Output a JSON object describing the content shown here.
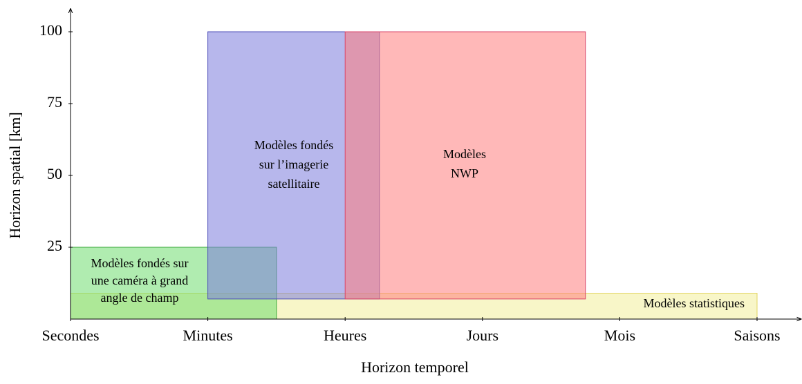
{
  "chart_data": {
    "type": "range",
    "xlabel": "Horizon temporel",
    "ylabel": "Horizon spatial [km]",
    "xlim": [
      0,
      5.32
    ],
    "xticks": [
      {
        "value": 0,
        "label": "Secondes"
      },
      {
        "value": 1,
        "label": "Minutes"
      },
      {
        "value": 2,
        "label": "Heures"
      },
      {
        "value": 3,
        "label": "Jours"
      },
      {
        "value": 4,
        "label": "Mois"
      },
      {
        "value": 5,
        "label": "Saisons"
      }
    ],
    "ylim": [
      0,
      108
    ],
    "yticks": [
      25,
      50,
      75,
      100
    ],
    "series": [
      {
        "name": [
          "Modèles statistiques"
        ],
        "color": "#f3ee9a",
        "stroke": "#e2d45e",
        "x": [
          0,
          5
        ],
        "y": [
          0,
          9
        ]
      },
      {
        "name": [
          "Modèles fondés sur",
          "une caméra à grand",
          "angle de champ"
        ],
        "color": "#6fdc6f",
        "stroke": "#3aa83a",
        "x": [
          0,
          1.5
        ],
        "y": [
          0,
          25
        ]
      },
      {
        "name": [
          "Modèles fondés",
          "sur l’imagerie",
          "satellitaire"
        ],
        "color": "#7b7bdd",
        "stroke": "#4d4db8",
        "x": [
          1,
          2.25
        ],
        "y": [
          7,
          100
        ]
      },
      {
        "name": [
          "Modèles",
          "NWP"
        ],
        "color": "#ff7e7e",
        "stroke": "#d94468",
        "x": [
          2,
          3.75
        ],
        "y": [
          7,
          100
        ]
      }
    ]
  }
}
